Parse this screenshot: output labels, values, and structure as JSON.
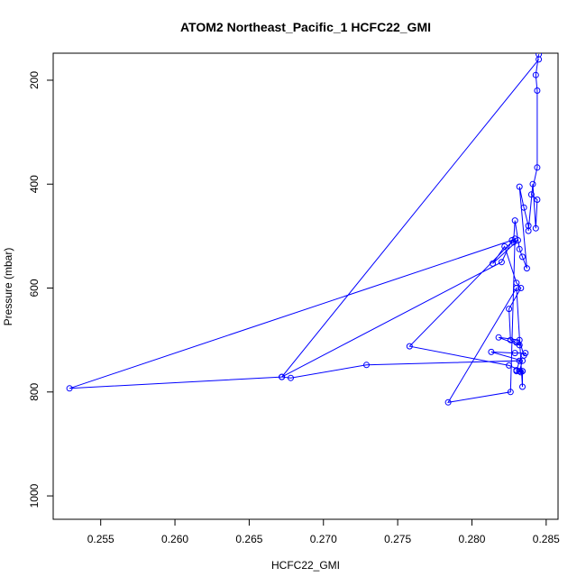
{
  "chart_data": {
    "type": "line",
    "title": "ATOM2 Northeast_Pacific_1 HCFC22_GMI",
    "xlabel": "HCFC22_GMI",
    "ylabel": "Pressure (mbar)",
    "xlim": [
      0.2518,
      0.2858
    ],
    "ylim": [
      1045,
      148
    ],
    "y_reversed": true,
    "xticks": [
      0.255,
      0.26,
      0.265,
      0.27,
      0.275,
      0.28,
      0.285
    ],
    "xtick_labels": [
      "0.255",
      "0.260",
      "0.265",
      "0.270",
      "0.275",
      "0.280",
      "0.285"
    ],
    "yticks": [
      200,
      400,
      600,
      800,
      1000
    ],
    "ytick_labels": [
      "200",
      "400",
      "600",
      "800",
      "1000"
    ],
    "grid": false,
    "legend": "none",
    "color": "#0000ff",
    "marker": "open-circle",
    "series": [
      {
        "points": [
          [
            0.2845,
            150
          ],
          [
            0.2843,
            190
          ],
          [
            0.2844,
            220
          ],
          [
            0.2844,
            368
          ],
          [
            0.284,
            420
          ],
          [
            0.2844,
            430
          ],
          [
            0.2843,
            485
          ],
          [
            0.2841,
            400
          ],
          [
            0.2838,
            490
          ],
          [
            0.2838,
            480
          ],
          [
            0.2835,
            445
          ],
          [
            0.2832,
            405
          ],
          [
            0.2837,
            562
          ],
          [
            0.2834,
            540
          ],
          [
            0.2832,
            525
          ],
          [
            0.2829,
            470
          ],
          [
            0.2828,
            512
          ],
          [
            0.2831,
            508
          ],
          [
            0.2814,
            553
          ],
          [
            0.2822,
            520
          ],
          [
            0.283,
            590
          ],
          [
            0.2833,
            600
          ],
          [
            0.2825,
            640
          ],
          [
            0.2826,
            700
          ],
          [
            0.283,
            705
          ],
          [
            0.2832,
            710
          ],
          [
            0.2818,
            695
          ],
          [
            0.2832,
            700
          ],
          [
            0.2835,
            730
          ],
          [
            0.2836,
            725
          ],
          [
            0.2829,
            725
          ],
          [
            0.2813,
            723
          ],
          [
            0.2834,
            740
          ],
          [
            0.2832,
            760
          ],
          [
            0.283,
            758
          ],
          [
            0.2833,
            762
          ],
          [
            0.2834,
            760
          ],
          [
            0.2825,
            749
          ],
          [
            0.2758,
            712
          ],
          [
            0.2829,
            505
          ],
          [
            0.2826,
            800
          ],
          [
            0.2784,
            820
          ],
          [
            0.283,
            600
          ],
          [
            0.2834,
            790
          ],
          [
            0.2834,
            760
          ],
          [
            0.283,
            760
          ],
          [
            0.2832,
            740
          ],
          [
            0.2729,
            748
          ],
          [
            0.2678,
            773
          ],
          [
            0.2672,
            771
          ],
          [
            0.282,
            550
          ],
          [
            0.2827,
            508
          ],
          [
            0.2529,
            793
          ],
          [
            0.2672,
            771
          ],
          [
            0.2845,
            160
          ]
        ]
      }
    ]
  }
}
